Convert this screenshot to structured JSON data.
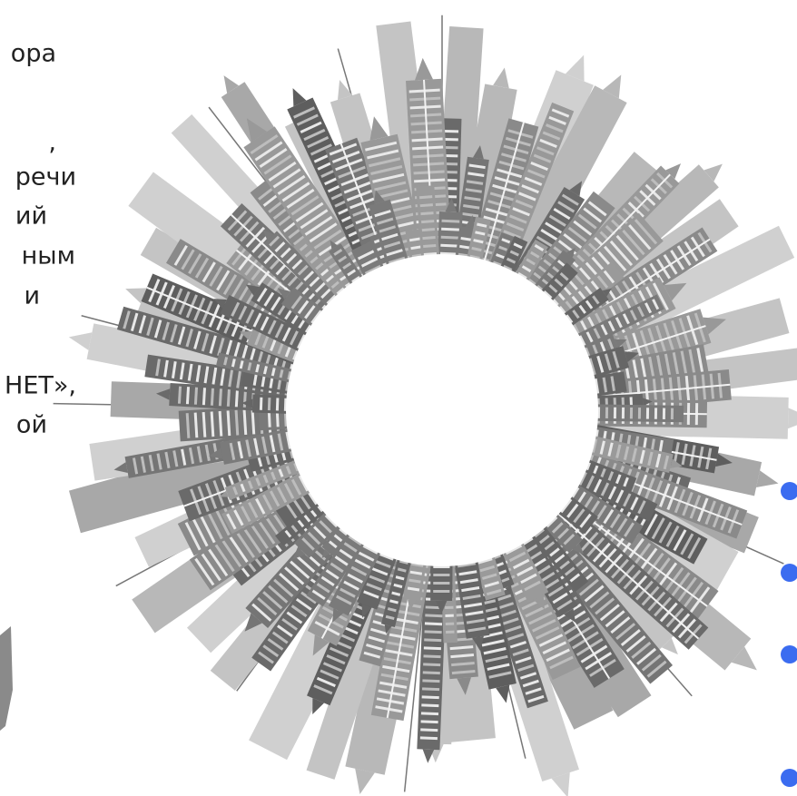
{
  "left_text": {
    "lines": [
      "ора",
      ",",
      "речи",
      "ий",
      "ным",
      "и",
      "НЕТ»,",
      "ой"
    ]
  }
}
